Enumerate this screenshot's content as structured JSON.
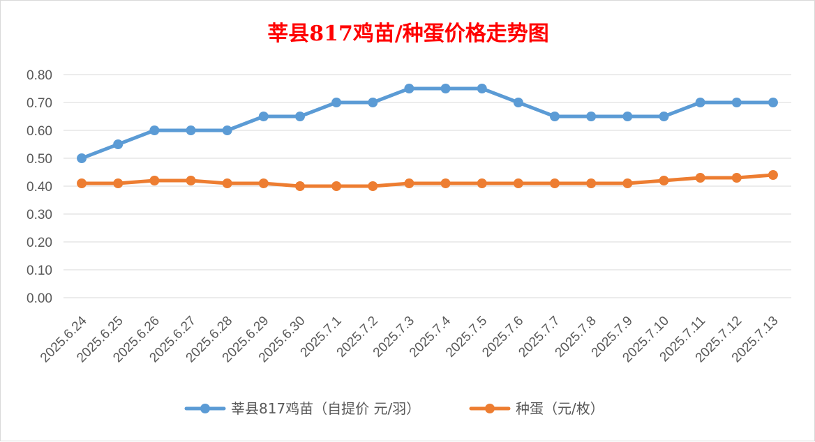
{
  "chart_data": {
    "type": "line",
    "title": "莘县817鸡苗/种蛋价格走势图",
    "title_color": "#ff0000",
    "categories": [
      "2025.6.24",
      "2025.6.25",
      "2025.6.26",
      "2025.6.27",
      "2025.6.28",
      "2025.6.29",
      "2025.6.30",
      "2025.7.1",
      "2025.7.2",
      "2025.7.3",
      "2025.7.4",
      "2025.7.5",
      "2025.7.6",
      "2025.7.7",
      "2025.7.8",
      "2025.7.9",
      "2025.7.10",
      "2025.7.11",
      "2025.7.12",
      "2025.7.13"
    ],
    "series": [
      {
        "name": "莘县817鸡苗（自提价 元/羽）",
        "color": "#5b9bd5",
        "values": [
          0.5,
          0.55,
          0.6,
          0.6,
          0.6,
          0.65,
          0.65,
          0.7,
          0.7,
          0.75,
          0.75,
          0.75,
          0.7,
          0.65,
          0.65,
          0.65,
          0.65,
          0.7,
          0.7,
          0.7
        ]
      },
      {
        "name": "种蛋（元/枚）",
        "color": "#ed7d31",
        "values": [
          0.41,
          0.41,
          0.42,
          0.42,
          0.41,
          0.41,
          0.4,
          0.4,
          0.4,
          0.41,
          0.41,
          0.41,
          0.41,
          0.41,
          0.41,
          0.41,
          0.42,
          0.43,
          0.43,
          0.44
        ]
      }
    ],
    "yticks": [
      "0.00",
      "0.10",
      "0.20",
      "0.30",
      "0.40",
      "0.50",
      "0.60",
      "0.70",
      "0.80"
    ],
    "ylim": [
      0,
      0.8
    ],
    "grid": true,
    "legend_position": "bottom"
  }
}
